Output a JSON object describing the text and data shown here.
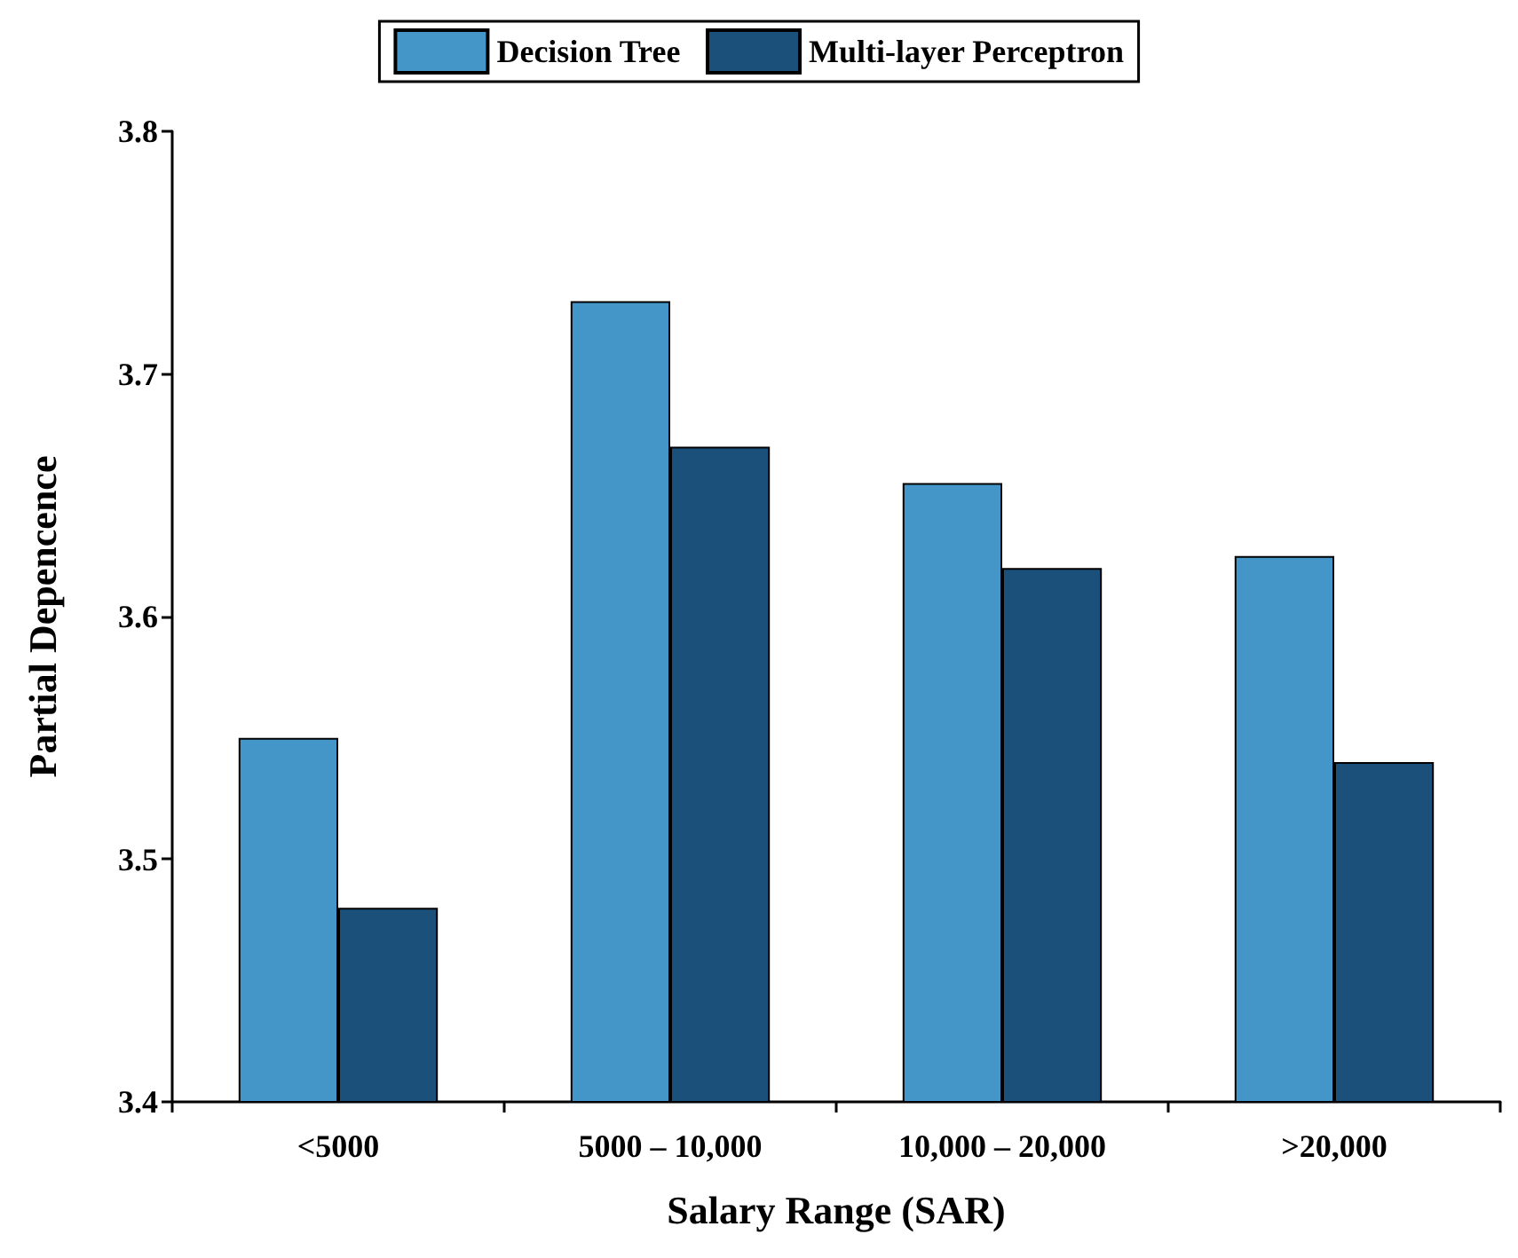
{
  "chart_data": {
    "type": "bar",
    "xlabel": "Salary Range (SAR)",
    "ylabel": "Partial Depencence",
    "categories": [
      "<5000",
      "5000 – 10,000",
      "10,000 – 20,000",
      ">20,000"
    ],
    "series": [
      {
        "name": "Decision Tree",
        "color": "#4596c8",
        "values": [
          3.55,
          3.73,
          3.655,
          3.625
        ]
      },
      {
        "name": "Multi-layer Perceptron",
        "color": "#1a5079",
        "values": [
          3.48,
          3.67,
          3.62,
          3.54
        ]
      }
    ],
    "ylim": [
      3.4,
      3.8
    ],
    "yticks": [
      3.4,
      3.5,
      3.6,
      3.7,
      3.8
    ],
    "grid": false,
    "legend": "top"
  }
}
